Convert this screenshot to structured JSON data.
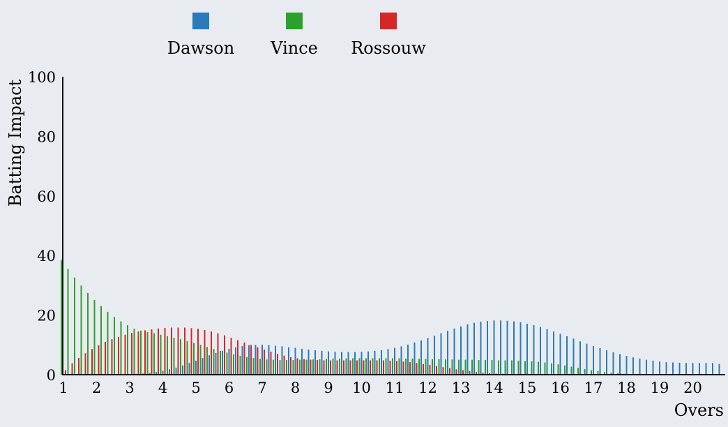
{
  "chart_data": {
    "type": "bar",
    "title": "",
    "xlabel": "Overs",
    "ylabel": "Batting Impact",
    "ylim": [
      0,
      100
    ],
    "xlim": [
      1,
      21
    ],
    "grid": false,
    "legend_position": "top",
    "x_ticks": [
      "1",
      "2",
      "3",
      "4",
      "5",
      "6",
      "7",
      "8",
      "9",
      "10",
      "11",
      "12",
      "13",
      "14",
      "15",
      "16",
      "17",
      "18",
      "19",
      "20"
    ],
    "y_ticks": [
      "0",
      "20",
      "40",
      "60",
      "80",
      "100"
    ],
    "x": [
      1.0,
      1.2,
      1.4,
      1.6,
      1.8,
      2.0,
      2.2,
      2.4,
      2.6,
      2.8,
      3.0,
      3.2,
      3.4,
      3.6,
      3.8,
      4.0,
      4.2,
      4.4,
      4.6,
      4.8,
      5.0,
      5.2,
      5.4,
      5.6,
      5.8,
      6.0,
      6.2,
      6.4,
      6.6,
      6.8,
      7.0,
      7.2,
      7.4,
      7.6,
      7.8,
      8.0,
      8.2,
      8.4,
      8.6,
      8.8,
      9.0,
      9.2,
      9.4,
      9.6,
      9.8,
      10.0,
      10.2,
      10.4,
      10.6,
      10.8,
      11.0,
      11.2,
      11.4,
      11.6,
      11.8,
      12.0,
      12.2,
      12.4,
      12.6,
      12.8,
      13.0,
      13.2,
      13.4,
      13.6,
      13.8,
      14.0,
      14.2,
      14.4,
      14.6,
      14.8,
      15.0,
      15.2,
      15.4,
      15.6,
      15.8,
      16.0,
      16.2,
      16.4,
      16.6,
      16.8,
      17.0,
      17.2,
      17.4,
      17.6,
      17.8,
      18.0,
      18.2,
      18.4,
      18.6,
      18.8,
      19.0,
      19.2,
      19.4,
      19.6,
      19.8,
      20.0,
      20.2,
      20.4,
      20.6,
      20.8
    ],
    "series": [
      {
        "name": "Dawson",
        "color": "#2b7bba",
        "values": [
          0.0,
          0.0,
          0.0,
          0.0,
          0.0,
          0.0,
          0.0,
          0.0,
          0.1,
          0.1,
          0.2,
          0.3,
          0.4,
          0.6,
          0.9,
          1.3,
          1.8,
          2.4,
          3.1,
          3.9,
          4.7,
          5.6,
          6.5,
          7.3,
          8.0,
          8.7,
          9.2,
          9.6,
          9.9,
          10.0,
          10.0,
          9.9,
          9.7,
          9.5,
          9.2,
          9.0,
          8.7,
          8.4,
          8.2,
          8.0,
          7.8,
          7.7,
          7.6,
          7.6,
          7.6,
          7.7,
          7.8,
          8.0,
          8.2,
          8.6,
          9.0,
          9.5,
          10.1,
          10.8,
          11.5,
          12.3,
          13.1,
          13.9,
          14.7,
          15.5,
          16.2,
          16.9,
          17.4,
          17.8,
          18.0,
          18.2,
          18.2,
          18.1,
          17.9,
          17.6,
          17.1,
          16.6,
          16.0,
          15.3,
          14.5,
          13.7,
          12.9,
          12.1,
          11.2,
          10.4,
          9.6,
          8.9,
          8.2,
          7.5,
          6.9,
          6.3,
          5.8,
          5.4,
          5.0,
          4.7,
          4.4,
          4.2,
          4.1,
          4.0,
          3.9,
          3.9,
          3.9,
          3.9,
          3.9,
          3.6
        ]
      },
      {
        "name": "Vince",
        "color": "#2ca02c",
        "values": [
          38.5,
          35.5,
          32.6,
          29.9,
          27.4,
          25.1,
          23.0,
          21.1,
          19.4,
          17.9,
          16.6,
          15.4,
          14.8,
          14.3,
          13.9,
          13.4,
          12.9,
          12.4,
          11.9,
          11.3,
          10.6,
          10.0,
          9.3,
          8.6,
          8.0,
          7.4,
          6.8,
          6.3,
          5.9,
          5.6,
          5.3,
          5.1,
          5.0,
          4.9,
          4.9,
          4.9,
          5.0,
          5.0,
          5.1,
          5.2,
          5.3,
          5.4,
          5.4,
          5.5,
          5.5,
          5.5,
          5.5,
          5.5,
          5.5,
          5.5,
          5.5,
          5.5,
          5.4,
          5.4,
          5.3,
          5.3,
          5.2,
          5.2,
          5.1,
          5.1,
          5.0,
          5.0,
          5.0,
          4.9,
          4.9,
          4.9,
          4.8,
          4.8,
          4.8,
          4.7,
          4.6,
          4.5,
          4.3,
          4.1,
          3.8,
          3.5,
          3.1,
          2.7,
          2.3,
          1.9,
          1.5,
          1.2,
          0.9,
          0.7,
          0.5,
          0.3,
          0.2,
          0.1,
          0.1,
          0.0,
          0.0,
          0.0,
          0.0,
          0.0,
          0.0,
          0.0,
          0.0,
          0.0,
          0.0,
          0.0
        ]
      },
      {
        "name": "Rossouw",
        "color": "#d62728",
        "values": [
          1.5,
          3.8,
          5.6,
          7.2,
          8.6,
          9.9,
          11.0,
          11.9,
          12.7,
          13.4,
          14.0,
          14.5,
          14.9,
          15.2,
          15.5,
          15.7,
          15.8,
          15.8,
          15.8,
          15.6,
          15.4,
          15.0,
          14.5,
          13.9,
          13.2,
          12.4,
          11.6,
          10.8,
          10.0,
          9.2,
          8.4,
          7.7,
          7.0,
          6.4,
          5.9,
          5.5,
          5.2,
          5.0,
          4.9,
          4.8,
          4.8,
          4.8,
          4.8,
          4.8,
          4.8,
          4.8,
          4.8,
          4.8,
          4.8,
          4.7,
          4.6,
          4.4,
          4.2,
          3.9,
          3.6,
          3.3,
          2.9,
          2.5,
          2.2,
          1.8,
          1.5,
          1.2,
          0.9,
          0.7,
          0.5,
          0.4,
          0.3,
          0.2,
          0.1,
          0.1,
          0.0,
          0.0,
          0.0,
          0.0,
          0.0,
          0.0,
          0.0,
          0.0,
          0.0,
          0.0,
          0.0,
          0.0,
          0.0,
          0.0,
          0.0,
          0.0,
          0.0,
          0.0,
          0.0,
          0.0,
          0.0,
          0.0,
          0.0,
          0.0,
          0.0,
          0.0,
          0.0,
          0.0,
          0.0,
          0.0
        ]
      }
    ]
  }
}
